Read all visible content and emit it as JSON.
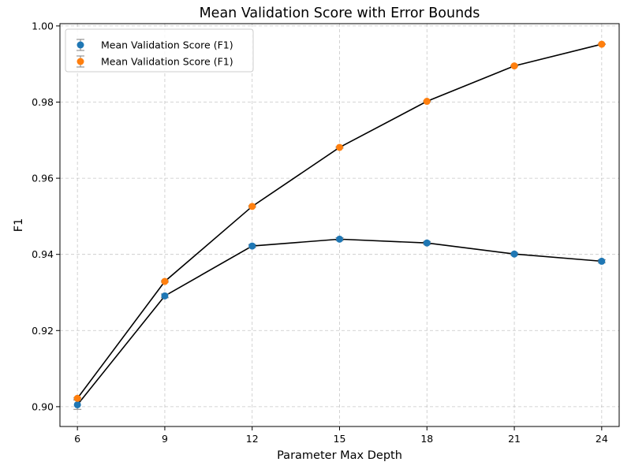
{
  "chart_data": {
    "type": "line",
    "title": "Mean Validation Score with Error Bounds",
    "xlabel": "Parameter Max Depth",
    "ylabel": "F1",
    "x": [
      6,
      9,
      12,
      15,
      18,
      21,
      24
    ],
    "xticks": [
      "6",
      "9",
      "12",
      "15",
      "18",
      "21",
      "24"
    ],
    "yticks": [
      "0.90",
      "0.92",
      "0.94",
      "0.96",
      "0.98",
      "1.00"
    ],
    "ytick_values": [
      0.9,
      0.92,
      0.94,
      0.96,
      0.98,
      1.0
    ],
    "xlim": [
      5.4,
      24.6
    ],
    "ylim": [
      0.8948,
      1.0006
    ],
    "grid": true,
    "legend_position": "top-left",
    "series": [
      {
        "name": "Mean Validation Score (F1)",
        "color": "#1f77b4",
        "values": [
          0.9005,
          0.9291,
          0.9422,
          0.944,
          0.943,
          0.9401,
          0.9382
        ],
        "errors": [
          0.0012,
          0.0005,
          0.0004,
          0.0004,
          0.0004,
          0.0003,
          0.0004
        ]
      },
      {
        "name": "Mean Validation Score (F1)",
        "color": "#ff7f0e",
        "values": [
          0.9022,
          0.9329,
          0.9526,
          0.9681,
          0.9802,
          0.9895,
          0.9952
        ],
        "errors": [
          0.0002,
          0.0002,
          0.0002,
          0.0002,
          0.0001,
          0.0001,
          0.0001
        ]
      }
    ],
    "line_color": "#000000",
    "error_color": "#808080"
  }
}
